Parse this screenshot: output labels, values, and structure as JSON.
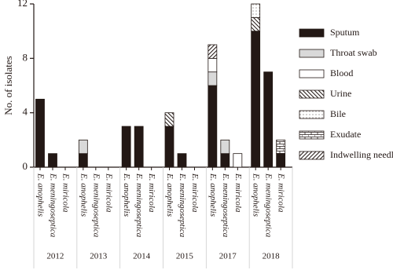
{
  "chart_data": {
    "type": "stacked-bar",
    "ylabel": "No. of isolates",
    "ylim": [
      0,
      12
    ],
    "yticks": [
      0,
      4,
      8,
      12
    ],
    "groups": [
      "2012",
      "2013",
      "2014",
      "2015",
      "2017",
      "2018"
    ],
    "categories": [
      "E. anophelis",
      "E. meningoseptica",
      "E. miricola",
      "E. anophelis",
      "E. meningoseptica",
      "E. miricola",
      "E. anophelis",
      "E. meningoseptica",
      "E. miricola",
      "E. anophelis",
      "E. meningoseptica",
      "E. miricola",
      "E. anophelis",
      "E. meningoseptica",
      "E. miricola",
      "E. anophelis",
      "E. meningoseptica",
      "E. miricola"
    ],
    "series": [
      {
        "name": "Sputum",
        "color": "#231815",
        "pattern": "solid",
        "values": [
          5,
          1,
          0,
          1,
          0,
          0,
          3,
          3,
          0,
          3,
          1,
          0,
          6,
          1,
          0,
          10,
          7,
          1
        ]
      },
      {
        "name": "Throat swab",
        "color": "#d9d9d9",
        "pattern": "solid",
        "values": [
          0,
          0,
          0,
          1,
          0,
          0,
          0,
          0,
          0,
          0,
          0,
          0,
          1,
          1,
          0,
          0,
          0,
          0
        ]
      },
      {
        "name": "Blood",
        "color": "#ffffff",
        "pattern": "solid",
        "values": [
          0,
          0,
          0,
          0,
          0,
          0,
          0,
          0,
          0,
          0,
          0,
          0,
          1,
          0,
          1,
          0,
          0,
          0
        ]
      },
      {
        "name": "Urine",
        "color": "#231815",
        "pattern": "hatch-down",
        "values": [
          0,
          0,
          0,
          0,
          0,
          0,
          0,
          0,
          0,
          1,
          0,
          0,
          0,
          0,
          0,
          1,
          0,
          0
        ]
      },
      {
        "name": "Bile",
        "color": "#231815",
        "pattern": "dots",
        "values": [
          0,
          0,
          0,
          0,
          0,
          0,
          0,
          0,
          0,
          0,
          0,
          0,
          0,
          0,
          0,
          1,
          0,
          0
        ]
      },
      {
        "name": "Exudate",
        "color": "#231815",
        "pattern": "brick",
        "values": [
          0,
          0,
          0,
          0,
          0,
          0,
          0,
          0,
          0,
          0,
          0,
          0,
          0,
          0,
          0,
          0,
          0,
          1
        ]
      },
      {
        "name": "Indwelling needle",
        "color": "#231815",
        "pattern": "hatch-up",
        "values": [
          0,
          0,
          0,
          0,
          0,
          0,
          0,
          0,
          0,
          0,
          0,
          0,
          1,
          0,
          0,
          0,
          0,
          0
        ]
      }
    ]
  }
}
